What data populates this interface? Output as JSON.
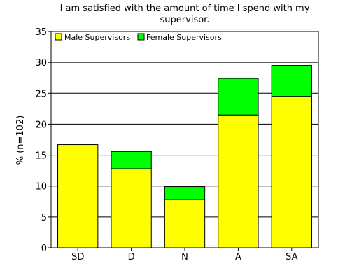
{
  "chart_data": {
    "type": "bar",
    "stacked": true,
    "title_lines": [
      "I am satisfied with the amount of time I spend with my",
      "supervisor."
    ],
    "xlabel": "",
    "ylabel": "% (n=102)",
    "categories": [
      "SD",
      "D",
      "N",
      "A",
      "SA"
    ],
    "series": [
      {
        "name": "Male Supervisors",
        "color": "#ffff00",
        "values": [
          16.7,
          12.8,
          7.8,
          21.5,
          24.5
        ]
      },
      {
        "name": "Female Supervisors",
        "color": "#00ff00",
        "values": [
          0,
          2.8,
          2.1,
          5.9,
          5.0
        ]
      }
    ],
    "ylim": [
      0,
      35
    ],
    "yticks": [
      0,
      5,
      10,
      15,
      20,
      25,
      30,
      35
    ],
    "grid": true,
    "legend_position": "top-left"
  }
}
